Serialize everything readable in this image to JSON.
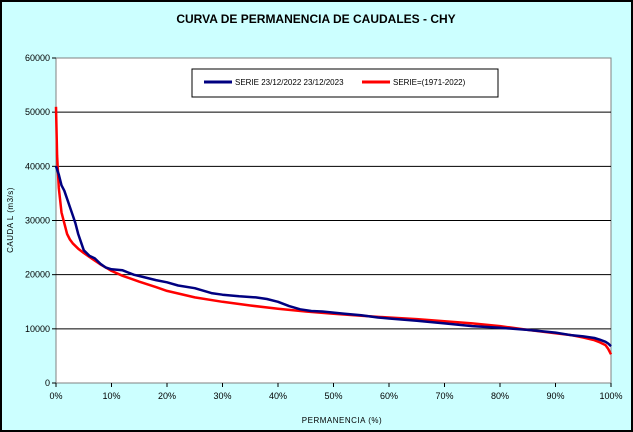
{
  "chart_data": {
    "type": "line",
    "title": "CURVA DE PERMANENCIA DE CAUDALES - CHY",
    "xlabel": "PERMANENCIA (%)",
    "ylabel": "CAUDA L (m3/s)",
    "xlim": [
      0,
      100
    ],
    "ylim": [
      0,
      60000
    ],
    "xticks": [
      "0%",
      "10%",
      "20%",
      "30%",
      "40%",
      "50%",
      "60%",
      "70%",
      "80%",
      "90%",
      "100%"
    ],
    "yticks": [
      "0",
      "10000",
      "20000",
      "30000",
      "40000",
      "50000",
      "60000"
    ],
    "grid": "horizontal",
    "legend_position": "top-center",
    "series": [
      {
        "name": "SERIE 23/12/2022 23/12/2023",
        "color": "#000080",
        "x": [
          0,
          0.5,
          1,
          1.5,
          2,
          2.5,
          3,
          3.5,
          4,
          4.5,
          5,
          6,
          7,
          8,
          9,
          10,
          12,
          14,
          16,
          18,
          20,
          22,
          25,
          28,
          30,
          33,
          36,
          38,
          40,
          42,
          44,
          46,
          48,
          50,
          52,
          55,
          58,
          60,
          65,
          70,
          75,
          80,
          85,
          90,
          93,
          95,
          97,
          98,
          99,
          99.5,
          100
        ],
        "values": [
          40000,
          38500,
          36500,
          35500,
          34000,
          32500,
          31000,
          29500,
          27500,
          26000,
          24500,
          23500,
          23000,
          22000,
          21300,
          21000,
          20800,
          20000,
          19500,
          19000,
          18600,
          18000,
          17500,
          16600,
          16300,
          16000,
          15800,
          15500,
          15000,
          14200,
          13600,
          13300,
          13200,
          13000,
          12800,
          12500,
          12100,
          11900,
          11500,
          11000,
          10500,
          10200,
          9800,
          9300,
          8800,
          8600,
          8300,
          8000,
          7600,
          7300,
          6800
        ]
      },
      {
        "name": "SERIE=(1971-2022)",
        "color": "#ff0000",
        "x": [
          0,
          0.2,
          0.5,
          1,
          1.5,
          2,
          2.5,
          3,
          4,
          5,
          6,
          7,
          8,
          9,
          10,
          12,
          15,
          18,
          20,
          25,
          30,
          35,
          40,
          45,
          50,
          55,
          60,
          65,
          70,
          75,
          80,
          85,
          90,
          93,
          95,
          97,
          98,
          99,
          99.5,
          100
        ],
        "values": [
          51000,
          42000,
          36000,
          31500,
          29500,
          27500,
          26500,
          25800,
          24800,
          24000,
          23300,
          22600,
          21900,
          21300,
          20700,
          19800,
          18700,
          17700,
          17000,
          15800,
          15000,
          14300,
          13700,
          13200,
          12800,
          12400,
          12100,
          11800,
          11400,
          11000,
          10500,
          9800,
          9200,
          8800,
          8400,
          7900,
          7500,
          7000,
          6300,
          5300
        ]
      }
    ]
  }
}
